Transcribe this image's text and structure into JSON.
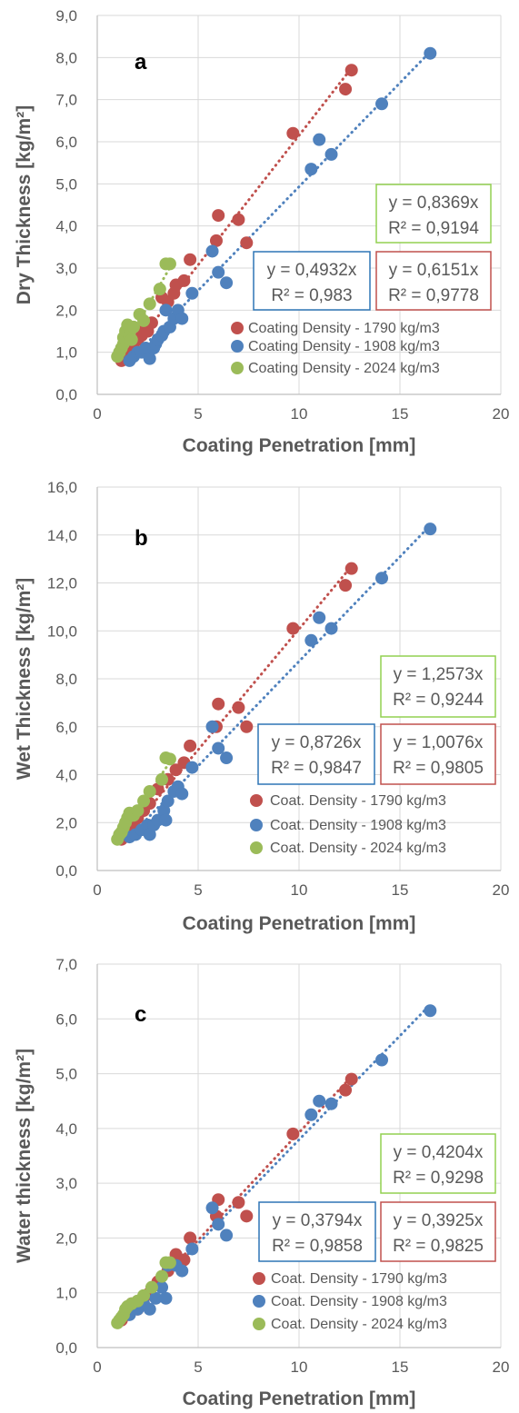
{
  "colors": {
    "red": "#C0504D",
    "blue": "#4F81BD",
    "green": "#9BBB59",
    "grid": "#D9D9D9",
    "text": "#595959",
    "box_red": "#C0504D",
    "box_blue": "#2E75B6",
    "box_green": "#92D050"
  },
  "chart_data": [
    {
      "type": "scatter",
      "label": "a",
      "xlabel": "Coating Penetration [mm]",
      "ylabel": "Dry Thickness [kg/m²]",
      "xlim": [
        0,
        20
      ],
      "ylim": [
        0,
        9
      ],
      "xticks": [
        0,
        5,
        10,
        15,
        20
      ],
      "xtick_labels": [
        "0",
        "5",
        "10",
        "15",
        "20"
      ],
      "yticks": [
        0,
        1,
        2,
        3,
        4,
        5,
        6,
        7,
        8,
        9
      ],
      "ytick_labels": [
        "0,0",
        "1,0",
        "2,0",
        "3,0",
        "4,0",
        "5,0",
        "6,0",
        "7,0",
        "8,0",
        "9,0"
      ],
      "grid": true,
      "series": [
        {
          "name": "Coating Density - 1790 kg/m3",
          "color": "red",
          "trend_slope": 0.6151,
          "trend_xrange": [
            1.2,
            12.6
          ],
          "points": [
            [
              1.2,
              0.8
            ],
            [
              1.4,
              1.0
            ],
            [
              1.6,
              1.1
            ],
            [
              1.8,
              1.2
            ],
            [
              2.0,
              1.3
            ],
            [
              2.2,
              1.4
            ],
            [
              2.3,
              1.6
            ],
            [
              2.5,
              1.5
            ],
            [
              2.7,
              1.7
            ],
            [
              3.2,
              2.3
            ],
            [
              3.5,
              2.2
            ],
            [
              3.8,
              2.4
            ],
            [
              3.9,
              2.6
            ],
            [
              4.3,
              2.7
            ],
            [
              4.6,
              3.2
            ],
            [
              5.9,
              3.65
            ],
            [
              6.0,
              4.25
            ],
            [
              7.0,
              4.15
            ],
            [
              7.4,
              3.6
            ],
            [
              9.7,
              6.2
            ],
            [
              12.3,
              7.25
            ],
            [
              12.6,
              7.7
            ]
          ]
        },
        {
          "name": "Coating Density - 1908 kg/m3",
          "color": "blue",
          "trend_slope": 0.4932,
          "trend_xrange": [
            1.5,
            16.5
          ],
          "points": [
            [
              1.6,
              0.8
            ],
            [
              1.8,
              0.9
            ],
            [
              2.0,
              1.0
            ],
            [
              2.2,
              1.0
            ],
            [
              2.4,
              1.1
            ],
            [
              2.6,
              0.85
            ],
            [
              2.8,
              1.1
            ],
            [
              2.9,
              1.2
            ],
            [
              3.0,
              1.3
            ],
            [
              3.2,
              1.4
            ],
            [
              3.3,
              1.5
            ],
            [
              3.4,
              2.0
            ],
            [
              3.6,
              1.6
            ],
            [
              3.8,
              1.8
            ],
            [
              4.0,
              2.0
            ],
            [
              4.2,
              1.8
            ],
            [
              4.7,
              2.4
            ],
            [
              5.7,
              3.4
            ],
            [
              6.0,
              2.9
            ],
            [
              6.4,
              2.65
            ],
            [
              10.6,
              5.35
            ],
            [
              11.0,
              6.05
            ],
            [
              11.6,
              5.7
            ],
            [
              14.1,
              6.9
            ],
            [
              16.5,
              8.1
            ]
          ]
        },
        {
          "name": "Coating Density - 2024 kg/m3",
          "color": "green",
          "trend_slope": 0.8369,
          "trend_xrange": [
            1.0,
            3.8
          ],
          "points": [
            [
              1.0,
              0.9
            ],
            [
              1.1,
              1.0
            ],
            [
              1.2,
              1.1
            ],
            [
              1.3,
              1.2
            ],
            [
              1.3,
              1.35
            ],
            [
              1.4,
              1.5
            ],
            [
              1.5,
              1.65
            ],
            [
              1.6,
              1.4
            ],
            [
              1.7,
              1.3
            ],
            [
              1.8,
              1.6
            ],
            [
              2.1,
              1.9
            ],
            [
              2.3,
              1.75
            ],
            [
              2.6,
              2.15
            ],
            [
              3.1,
              2.5
            ],
            [
              3.4,
              3.1
            ],
            [
              3.6,
              3.1
            ]
          ]
        }
      ],
      "equations": [
        {
          "color": "green",
          "eq": "y = 0,8369x",
          "r2": "R² = 0,9194"
        },
        {
          "color": "blue",
          "eq": "y = 0,4932x",
          "r2": "R² = 0,983"
        },
        {
          "color": "red",
          "eq": "y = 0,6151x",
          "r2": "R² = 0,9778"
        }
      ]
    },
    {
      "type": "scatter",
      "label": "b",
      "xlabel": "Coating Penetration [mm]",
      "ylabel": "Wet Thickness [kg/m²]",
      "xlim": [
        0,
        20
      ],
      "ylim": [
        0,
        16
      ],
      "xticks": [
        0,
        5,
        10,
        15,
        20
      ],
      "xtick_labels": [
        "0",
        "5",
        "10",
        "15",
        "20"
      ],
      "yticks": [
        0,
        2,
        4,
        6,
        8,
        10,
        12,
        14,
        16
      ],
      "ytick_labels": [
        "0,0",
        "2,0",
        "4,0",
        "6,0",
        "8,0",
        "10,0",
        "12,0",
        "14,0",
        "16,0"
      ],
      "grid": true,
      "series": [
        {
          "name": "Coat. Density - 1790 kg/m3",
          "color": "red",
          "trend_slope": 1.0076,
          "trend_xrange": [
            1.2,
            12.6
          ],
          "points": [
            [
              1.2,
              1.3
            ],
            [
              1.4,
              1.6
            ],
            [
              1.6,
              1.8
            ],
            [
              1.8,
              2.0
            ],
            [
              2.0,
              2.2
            ],
            [
              2.3,
              2.5
            ],
            [
              2.6,
              2.8
            ],
            [
              3.0,
              3.4
            ],
            [
              3.5,
              3.8
            ],
            [
              3.9,
              4.2
            ],
            [
              4.3,
              4.5
            ],
            [
              4.6,
              5.2
            ],
            [
              5.9,
              6.0
            ],
            [
              6.0,
              6.95
            ],
            [
              7.0,
              6.8
            ],
            [
              7.4,
              6.0
            ],
            [
              9.7,
              10.1
            ],
            [
              12.3,
              11.9
            ],
            [
              12.6,
              12.6
            ]
          ]
        },
        {
          "name": "Coat. Density - 1908 kg/m3",
          "color": "blue",
          "trend_slope": 0.8726,
          "trend_xrange": [
            1.5,
            16.5
          ],
          "points": [
            [
              1.6,
              1.4
            ],
            [
              1.9,
              1.5
            ],
            [
              2.2,
              1.7
            ],
            [
              2.5,
              1.9
            ],
            [
              2.6,
              1.5
            ],
            [
              2.8,
              1.9
            ],
            [
              3.0,
              2.1
            ],
            [
              3.3,
              2.5
            ],
            [
              3.4,
              2.1
            ],
            [
              3.5,
              2.9
            ],
            [
              3.8,
              3.3
            ],
            [
              4.0,
              3.5
            ],
            [
              4.2,
              3.2
            ],
            [
              4.7,
              4.3
            ],
            [
              5.7,
              6.0
            ],
            [
              6.0,
              5.1
            ],
            [
              6.4,
              4.7
            ],
            [
              10.6,
              9.6
            ],
            [
              11.0,
              10.55
            ],
            [
              11.6,
              10.1
            ],
            [
              14.1,
              12.2
            ],
            [
              16.5,
              14.25
            ]
          ]
        },
        {
          "name": "Coat. Density - 2024 kg/m3",
          "color": "green",
          "trend_slope": 1.2573,
          "trend_xrange": [
            1.0,
            3.8
          ],
          "points": [
            [
              1.0,
              1.3
            ],
            [
              1.1,
              1.5
            ],
            [
              1.2,
              1.6
            ],
            [
              1.3,
              1.8
            ],
            [
              1.4,
              2.0
            ],
            [
              1.5,
              2.2
            ],
            [
              1.6,
              2.4
            ],
            [
              1.8,
              2.3
            ],
            [
              2.0,
              2.5
            ],
            [
              2.3,
              2.9
            ],
            [
              2.6,
              3.3
            ],
            [
              3.2,
              3.8
            ],
            [
              3.4,
              4.7
            ],
            [
              3.6,
              4.65
            ]
          ]
        }
      ],
      "equations": [
        {
          "color": "green",
          "eq": "y = 1,2573x",
          "r2": "R² = 0,9244"
        },
        {
          "color": "blue",
          "eq": "y = 0,8726x",
          "r2": "R² = 0,9847"
        },
        {
          "color": "red",
          "eq": "y = 1,0076x",
          "r2": "R² = 0,9805"
        }
      ]
    },
    {
      "type": "scatter",
      "label": "c",
      "xlabel": "Coating Penetration [mm]",
      "ylabel": "Water thickness [kg/m²]",
      "xlim": [
        0,
        20
      ],
      "ylim": [
        0,
        7
      ],
      "xticks": [
        0,
        5,
        10,
        15,
        20
      ],
      "xtick_labels": [
        "0",
        "5",
        "10",
        "15",
        "20"
      ],
      "yticks": [
        0,
        1,
        2,
        3,
        4,
        5,
        6,
        7
      ],
      "ytick_labels": [
        "0,0",
        "1,0",
        "2,0",
        "3,0",
        "4,0",
        "5,0",
        "6,0",
        "7,0"
      ],
      "grid": true,
      "series": [
        {
          "name": "Coat. Density - 1790 kg/m3",
          "color": "red",
          "trend_slope": 0.3925,
          "trend_xrange": [
            1.2,
            12.6
          ],
          "points": [
            [
              1.2,
              0.5
            ],
            [
              1.5,
              0.6
            ],
            [
              1.7,
              0.8
            ],
            [
              2.0,
              0.7
            ],
            [
              2.3,
              0.9
            ],
            [
              2.6,
              1.0
            ],
            [
              3.0,
              1.2
            ],
            [
              3.5,
              1.4
            ],
            [
              3.9,
              1.7
            ],
            [
              4.3,
              1.6
            ],
            [
              4.6,
              2.0
            ],
            [
              5.9,
              2.4
            ],
            [
              6.0,
              2.7
            ],
            [
              7.0,
              2.65
            ],
            [
              7.4,
              2.4
            ],
            [
              9.7,
              3.9
            ],
            [
              12.3,
              4.7
            ],
            [
              12.6,
              4.9
            ]
          ]
        },
        {
          "name": "Coat. Density - 1908 kg/m3",
          "color": "blue",
          "trend_slope": 0.3794,
          "trend_xrange": [
            1.5,
            16.5
          ],
          "points": [
            [
              1.6,
              0.6
            ],
            [
              2.0,
              0.7
            ],
            [
              2.3,
              0.8
            ],
            [
              2.6,
              0.7
            ],
            [
              2.9,
              0.9
            ],
            [
              3.2,
              1.1
            ],
            [
              3.4,
              0.9
            ],
            [
              3.5,
              1.5
            ],
            [
              3.9,
              1.5
            ],
            [
              4.2,
              1.4
            ],
            [
              4.7,
              1.8
            ],
            [
              5.7,
              2.55
            ],
            [
              6.0,
              2.25
            ],
            [
              6.4,
              2.05
            ],
            [
              10.6,
              4.25
            ],
            [
              11.0,
              4.5
            ],
            [
              11.6,
              4.45
            ],
            [
              14.1,
              5.25
            ],
            [
              16.5,
              6.15
            ]
          ]
        },
        {
          "name": "Coat. Density - 2024 kg/m3",
          "color": "green",
          "trend_slope": 0.4204,
          "trend_xrange": [
            1.0,
            3.8
          ],
          "points": [
            [
              1.0,
              0.45
            ],
            [
              1.1,
              0.5
            ],
            [
              1.2,
              0.55
            ],
            [
              1.3,
              0.6
            ],
            [
              1.4,
              0.7
            ],
            [
              1.5,
              0.75
            ],
            [
              1.7,
              0.8
            ],
            [
              2.0,
              0.85
            ],
            [
              2.3,
              0.95
            ],
            [
              2.7,
              1.1
            ],
            [
              3.2,
              1.3
            ],
            [
              3.4,
              1.55
            ],
            [
              3.6,
              1.55
            ]
          ]
        }
      ],
      "equations": [
        {
          "color": "green",
          "eq": "y = 0,4204x",
          "r2": "R² = 0,9298"
        },
        {
          "color": "blue",
          "eq": "y = 0,3794x",
          "r2": "R² = 0,9858"
        },
        {
          "color": "red",
          "eq": "y = 0,3925x",
          "r2": "R² = 0,9825"
        }
      ]
    }
  ]
}
